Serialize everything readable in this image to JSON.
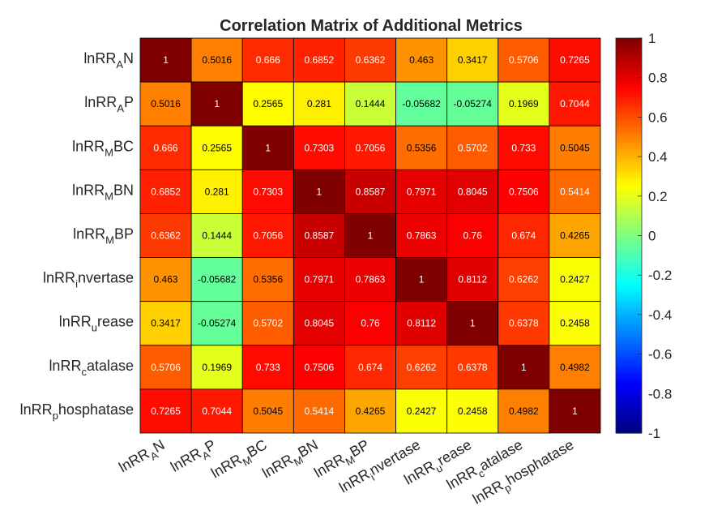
{
  "chart_data": {
    "type": "heatmap",
    "title": "Correlation Matrix of Additional Metrics",
    "labels": [
      {
        "base": "lnRR",
        "sub": "A",
        "rest": "N"
      },
      {
        "base": "lnRR",
        "sub": "A",
        "rest": "P"
      },
      {
        "base": "lnRR",
        "sub": "M",
        "rest": "BC"
      },
      {
        "base": "lnRR",
        "sub": "M",
        "rest": "BN"
      },
      {
        "base": "lnRR",
        "sub": "M",
        "rest": "BP"
      },
      {
        "base": "lnRR",
        "sub": "i",
        "rest": "nvertase"
      },
      {
        "base": "lnRR",
        "sub": "u",
        "rest": "rease"
      },
      {
        "base": "lnRR",
        "sub": "c",
        "rest": "atalase"
      },
      {
        "base": "lnRR",
        "sub": "p",
        "rest": "hosphatase"
      }
    ],
    "matrix": [
      [
        1,
        0.5016,
        0.666,
        0.6852,
        0.6362,
        0.463,
        0.3417,
        0.5706,
        0.7265
      ],
      [
        0.5016,
        1,
        0.2565,
        0.281,
        0.1444,
        -0.05682,
        -0.05274,
        0.1969,
        0.7044
      ],
      [
        0.666,
        0.2565,
        1,
        0.7303,
        0.7056,
        0.5356,
        0.5702,
        0.733,
        0.5045
      ],
      [
        0.6852,
        0.281,
        0.7303,
        1,
        0.8587,
        0.7971,
        0.8045,
        0.7506,
        0.5414
      ],
      [
        0.6362,
        0.1444,
        0.7056,
        0.8587,
        1,
        0.7863,
        0.76,
        0.674,
        0.4265
      ],
      [
        0.463,
        -0.05682,
        0.5356,
        0.7971,
        0.7863,
        1,
        0.8112,
        0.6262,
        0.2427
      ],
      [
        0.3417,
        -0.05274,
        0.5702,
        0.8045,
        0.76,
        0.8112,
        1,
        0.6378,
        0.2458
      ],
      [
        0.5706,
        0.1969,
        0.733,
        0.7506,
        0.674,
        0.6262,
        0.6378,
        1,
        0.4982
      ],
      [
        0.7265,
        0.7044,
        0.5045,
        0.5414,
        0.4265,
        0.2427,
        0.2458,
        0.4982,
        1
      ]
    ],
    "cell_labels": [
      [
        "1",
        "0.5016",
        "0.666",
        "0.6852",
        "0.6362",
        "0.463",
        "0.3417",
        "0.5706",
        "0.7265"
      ],
      [
        "0.5016",
        "1",
        "0.2565",
        "0.281",
        "0.1444",
        "-0.05682",
        "-0.05274",
        "0.1969",
        "0.7044"
      ],
      [
        "0.666",
        "0.2565",
        "1",
        "0.7303",
        "0.7056",
        "0.5356",
        "0.5702",
        "0.733",
        "0.5045"
      ],
      [
        "0.6852",
        "0.281",
        "0.7303",
        "1",
        "0.8587",
        "0.7971",
        "0.8045",
        "0.7506",
        "0.5414"
      ],
      [
        "0.6362",
        "0.1444",
        "0.7056",
        "0.8587",
        "1",
        "0.7863",
        "0.76",
        "0.674",
        "0.4265"
      ],
      [
        "0.463",
        "-0.05682",
        "0.5356",
        "0.7971",
        "0.7863",
        "1",
        "0.8112",
        "0.6262",
        "0.2427"
      ],
      [
        "0.3417",
        "-0.05274",
        "0.5702",
        "0.8045",
        "0.76",
        "0.8112",
        "1",
        "0.6378",
        "0.2458"
      ],
      [
        "0.5706",
        "0.1969",
        "0.733",
        "0.7506",
        "0.674",
        "0.6262",
        "0.6378",
        "1",
        "0.4982"
      ],
      [
        "0.7265",
        "0.7044",
        "0.5045",
        "0.5414",
        "0.4265",
        "0.2427",
        "0.2458",
        "0.4982",
        "1"
      ]
    ],
    "colormap": "jet",
    "clim": [
      -1,
      1
    ],
    "colorbar_ticks": [
      1,
      0.8,
      0.6,
      0.4,
      0.2,
      0,
      -0.2,
      -0.4,
      -0.6,
      -0.8,
      -1
    ],
    "colorbar_tick_labels": [
      "1",
      "0.8",
      "0.6",
      "0.4",
      "0.2",
      "0",
      "-0.2",
      "-0.4",
      "-0.6",
      "-0.8",
      "-1"
    ],
    "colorbar_location": "right",
    "cell_borders": true
  }
}
